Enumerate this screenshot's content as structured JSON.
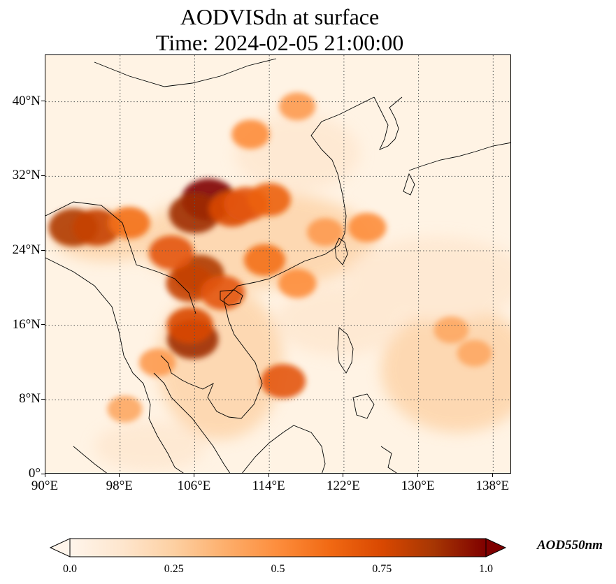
{
  "title": {
    "line1": "AODVISdn at surface",
    "line2": "Time: 2024-02-05 21:00:00"
  },
  "map": {
    "extent": {
      "lon_min": 90,
      "lon_max": 140,
      "lat_min": 0,
      "lat_max": 45
    },
    "lat_ticks": [
      {
        "value": 0,
        "label": "0°"
      },
      {
        "value": 8,
        "label": "8°N"
      },
      {
        "value": 16,
        "label": "16°N"
      },
      {
        "value": 24,
        "label": "24°N"
      },
      {
        "value": 32,
        "label": "32°N"
      },
      {
        "value": 40,
        "label": "40°N"
      }
    ],
    "lon_ticks": [
      {
        "value": 90,
        "label": "90°E"
      },
      {
        "value": 98,
        "label": "98°E"
      },
      {
        "value": 106,
        "label": "106°E"
      },
      {
        "value": 114,
        "label": "114°E"
      },
      {
        "value": 122,
        "label": "122°E"
      },
      {
        "value": 130,
        "label": "130°E"
      },
      {
        "value": 138,
        "label": "138°E"
      }
    ],
    "gridlines": "dotted",
    "background_color": "#fff3e4",
    "aod_hotspots": [
      {
        "lon": 107.5,
        "lat": 29.5,
        "value": 1.0
      },
      {
        "lon": 106.0,
        "lat": 28.0,
        "value": 0.9
      },
      {
        "lon": 110.0,
        "lat": 28.5,
        "value": 0.75
      },
      {
        "lon": 111.5,
        "lat": 29.0,
        "value": 0.7
      },
      {
        "lon": 114.0,
        "lat": 29.5,
        "value": 0.65
      },
      {
        "lon": 106.5,
        "lat": 21.5,
        "value": 0.85
      },
      {
        "lon": 105.5,
        "lat": 20.5,
        "value": 0.8
      },
      {
        "lon": 109.0,
        "lat": 19.5,
        "value": 0.7
      },
      {
        "lon": 105.8,
        "lat": 14.5,
        "value": 0.9
      },
      {
        "lon": 105.5,
        "lat": 16.0,
        "value": 0.75
      },
      {
        "lon": 93.0,
        "lat": 26.5,
        "value": 0.85
      },
      {
        "lon": 95.5,
        "lat": 26.5,
        "value": 0.8
      },
      {
        "lon": 99.0,
        "lat": 27.0,
        "value": 0.6
      },
      {
        "lon": 103.5,
        "lat": 23.8,
        "value": 0.7
      },
      {
        "lon": 113.5,
        "lat": 23.0,
        "value": 0.6
      },
      {
        "lon": 117.0,
        "lat": 20.5,
        "value": 0.5
      },
      {
        "lon": 115.5,
        "lat": 10.0,
        "value": 0.7
      },
      {
        "lon": 112.0,
        "lat": 36.5,
        "value": 0.5
      },
      {
        "lon": 117.0,
        "lat": 39.5,
        "value": 0.45
      },
      {
        "lon": 124.5,
        "lat": 26.5,
        "value": 0.5
      },
      {
        "lon": 133.5,
        "lat": 15.5,
        "value": 0.4
      },
      {
        "lon": 136.0,
        "lat": 13.0,
        "value": 0.4
      },
      {
        "lon": 120.0,
        "lat": 26.0,
        "value": 0.45
      },
      {
        "lon": 102.0,
        "lat": 12.0,
        "value": 0.45
      },
      {
        "lon": 98.5,
        "lat": 7.0,
        "value": 0.4
      }
    ]
  },
  "colorbar": {
    "label": "AOD550nm",
    "ticks": [
      "0.0",
      "0.25",
      "0.5",
      "0.75",
      "1.0"
    ],
    "min": 0.0,
    "max": 1.0,
    "colors": [
      "#fff5eb",
      "#fee6ce",
      "#fdd0a2",
      "#fdae6b",
      "#fd8d3c",
      "#f16913",
      "#d94801",
      "#a63603",
      "#7f0000"
    ]
  }
}
